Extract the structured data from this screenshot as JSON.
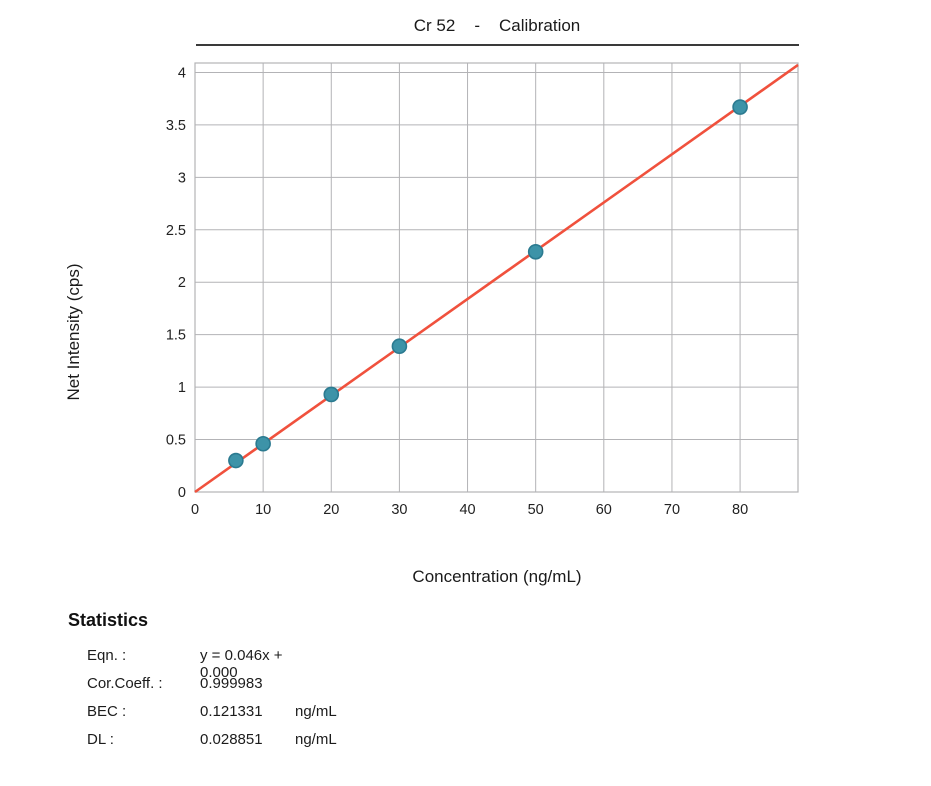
{
  "title": {
    "element": "Cr 52",
    "separator": "-",
    "label": "Calibration"
  },
  "axes": {
    "x_label": "Concentration (ng/mL)",
    "y_label": "Net Intensity (cps)"
  },
  "statistics": {
    "header": "Statistics",
    "rows": [
      {
        "label": "Eqn. :",
        "value": "y = 0.046x + 0.000",
        "unit": ""
      },
      {
        "label": "Cor.Coeff. :",
        "value": "0.999983",
        "unit": ""
      },
      {
        "label": "BEC :",
        "value": "0.121331",
        "unit": "ng/mL"
      },
      {
        "label": "DL :",
        "value": "0.028851",
        "unit": "ng/mL"
      }
    ]
  },
  "chart_data": {
    "type": "scatter",
    "title": "Cr 52 - Calibration",
    "xlabel": "Concentration (ng/mL)",
    "ylabel": "Net Intensity (cps)",
    "xlim": [
      0,
      88.5
    ],
    "ylim": [
      0,
      4.09
    ],
    "x_ticks": [
      0,
      10,
      20,
      30,
      40,
      50,
      60,
      70,
      80
    ],
    "y_ticks": [
      0,
      0.5,
      1,
      1.5,
      2,
      2.5,
      3,
      3.5,
      4
    ],
    "grid": true,
    "legend": "none",
    "points": {
      "x": [
        6,
        10,
        20,
        30,
        50,
        80
      ],
      "y": [
        0.3,
        0.46,
        0.93,
        1.39,
        2.29,
        3.67
      ]
    },
    "fit_line": {
      "slope": 0.046,
      "intercept": 0.0,
      "equation": "y = 0.046x + 0.000",
      "cor_coeff": 0.999983,
      "bec_ng_ml": 0.121331,
      "dl_ng_ml": 0.028851
    },
    "colors": {
      "point_fill": "#3d93a8",
      "point_stroke": "#2b7a90",
      "line": "#f0513d",
      "grid": "#b3b3b6",
      "text": "#222222"
    }
  }
}
